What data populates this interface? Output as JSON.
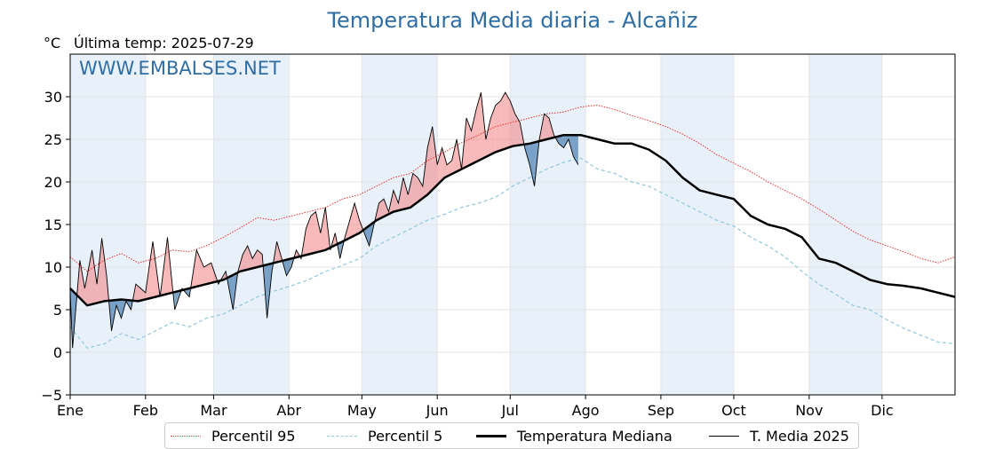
{
  "chart_data": {
    "type": "line",
    "title": "Temperatura Media diaria - Alcañiz",
    "ylabel": "°C",
    "subtitle": "Última temp: 2025-07-29",
    "watermark": "WWW.EMBALSES.NET",
    "ylim": [
      -5,
      35
    ],
    "yticks": [
      -5,
      0,
      5,
      10,
      15,
      20,
      25,
      30
    ],
    "ytick_labels": [
      "−5",
      "0",
      "5",
      "10",
      "15",
      "20",
      "25",
      "30"
    ],
    "xlim_day": [
      1,
      365
    ],
    "months": [
      "Ene",
      "Feb",
      "Mar",
      "Abr",
      "May",
      "Jun",
      "Jul",
      "Ago",
      "Sep",
      "Oct",
      "Nov",
      "Dic"
    ],
    "month_start_day": [
      1,
      32,
      60,
      91,
      121,
      152,
      182,
      213,
      244,
      274,
      305,
      335
    ],
    "grid": true,
    "legend_position": "bottom",
    "colors": {
      "title": "#2f6ea4",
      "watermark": "#2f6ea4",
      "p95": "#e8312b",
      "p5": "#8ec8dc",
      "median": "#000000",
      "t2025": "#000000",
      "above": "#f08080",
      "below": "#2e6aa3",
      "band": "#e8f1fa"
    },
    "series": [
      {
        "name": "Percentil 95",
        "style": "dotted",
        "x": [
          1,
          8,
          15,
          22,
          29,
          36,
          43,
          50,
          57,
          64,
          71,
          78,
          85,
          92,
          99,
          106,
          113,
          120,
          127,
          134,
          141,
          148,
          155,
          162,
          169,
          176,
          183,
          190,
          197,
          204,
          211,
          218,
          225,
          232,
          239,
          246,
          253,
          260,
          267,
          274,
          281,
          288,
          295,
          302,
          309,
          316,
          323,
          330,
          337,
          344,
          351,
          358,
          365
        ],
        "y": [
          11.2,
          9.5,
          10.8,
          11.6,
          10.5,
          11.0,
          12.0,
          11.8,
          12.5,
          13.5,
          14.6,
          15.8,
          15.5,
          16.0,
          16.5,
          17.0,
          18.0,
          18.5,
          19.5,
          20.5,
          21.0,
          22.5,
          23.5,
          24.6,
          25.5,
          26.5,
          27.0,
          27.5,
          28.0,
          28.2,
          28.8,
          29.0,
          28.5,
          27.8,
          27.2,
          26.5,
          25.6,
          24.5,
          23.2,
          22.2,
          21.2,
          20.0,
          19.0,
          18.0,
          16.8,
          15.5,
          14.2,
          13.2,
          12.5,
          11.8,
          11.0,
          10.5,
          11.2
        ]
      },
      {
        "name": "Percentil 5",
        "style": "dashed",
        "x": [
          1,
          8,
          15,
          22,
          29,
          36,
          43,
          50,
          57,
          64,
          71,
          78,
          85,
          92,
          99,
          106,
          113,
          120,
          127,
          134,
          141,
          148,
          155,
          162,
          169,
          176,
          183,
          190,
          197,
          204,
          211,
          218,
          225,
          232,
          239,
          246,
          253,
          260,
          267,
          274,
          281,
          288,
          295,
          302,
          309,
          316,
          323,
          330,
          337,
          344,
          351,
          358,
          365
        ],
        "y": [
          3.0,
          0.5,
          1.0,
          2.2,
          1.5,
          2.5,
          3.5,
          3.0,
          4.0,
          4.5,
          5.5,
          6.5,
          7.2,
          7.8,
          8.5,
          9.5,
          10.2,
          11.0,
          12.5,
          13.5,
          14.5,
          15.5,
          16.2,
          17.0,
          17.5,
          18.2,
          19.5,
          20.5,
          21.5,
          22.3,
          22.8,
          21.5,
          21.0,
          20.0,
          19.5,
          18.5,
          17.5,
          16.5,
          15.5,
          14.8,
          13.5,
          12.5,
          11.2,
          9.5,
          8.0,
          6.8,
          5.5,
          5.0,
          3.8,
          2.8,
          2.0,
          1.2,
          1.0
        ]
      },
      {
        "name": "Temperatura Mediana",
        "style": "solid-bold",
        "x": [
          1,
          8,
          15,
          22,
          29,
          36,
          43,
          50,
          57,
          64,
          71,
          78,
          85,
          92,
          99,
          106,
          113,
          120,
          127,
          134,
          141,
          148,
          155,
          162,
          169,
          176,
          183,
          190,
          197,
          204,
          211,
          218,
          225,
          232,
          239,
          246,
          253,
          260,
          267,
          274,
          281,
          288,
          295,
          302,
          309,
          316,
          323,
          330,
          337,
          344,
          351,
          358,
          365
        ],
        "y": [
          7.5,
          5.5,
          6.0,
          6.2,
          6.0,
          6.5,
          7.0,
          7.5,
          8.0,
          8.5,
          9.5,
          10.0,
          10.5,
          11.0,
          11.5,
          12.0,
          13.0,
          14.0,
          15.5,
          16.5,
          17.0,
          18.5,
          20.5,
          21.5,
          22.5,
          23.5,
          24.2,
          24.5,
          25.0,
          25.5,
          25.5,
          25.0,
          24.5,
          24.5,
          23.8,
          22.5,
          20.5,
          19.0,
          18.5,
          18.0,
          16.0,
          15.0,
          14.5,
          13.5,
          11.0,
          10.5,
          9.5,
          8.5,
          8.0,
          7.8,
          7.5,
          7.0,
          6.5
        ]
      },
      {
        "name": "T. Media 2025",
        "style": "solid-thin",
        "x": [
          1,
          2,
          5,
          7,
          10,
          12,
          14,
          16,
          18,
          20,
          22,
          24,
          26,
          28,
          30,
          32,
          35,
          38,
          41,
          44,
          47,
          50,
          53,
          56,
          59,
          62,
          65,
          68,
          70,
          72,
          74,
          76,
          78,
          80,
          82,
          84,
          86,
          88,
          90,
          92,
          94,
          96,
          98,
          100,
          102,
          104,
          106,
          108,
          110,
          112,
          114,
          116,
          118,
          120,
          122,
          124,
          126,
          128,
          130,
          132,
          134,
          136,
          138,
          140,
          142,
          144,
          146,
          148,
          150,
          152,
          154,
          156,
          158,
          160,
          162,
          164,
          166,
          168,
          170,
          172,
          174,
          176,
          178,
          180,
          182,
          184,
          186,
          188,
          190,
          192,
          194,
          196,
          198,
          200,
          202,
          204,
          206,
          208,
          210
        ],
        "y": [
          7.0,
          0.5,
          10.8,
          7.5,
          12.0,
          8.0,
          13.4,
          9.0,
          2.5,
          5.5,
          4.0,
          6.0,
          5.0,
          8.0,
          7.5,
          7.0,
          13.0,
          6.5,
          13.5,
          5.0,
          7.5,
          6.5,
          12.0,
          10.0,
          10.5,
          8.0,
          9.5,
          5.0,
          9.5,
          11.5,
          12.5,
          11.0,
          12.0,
          11.5,
          4.0,
          9.5,
          13.0,
          11.0,
          9.0,
          10.0,
          12.0,
          11.0,
          14.5,
          16.0,
          16.5,
          14.0,
          17.0,
          12.0,
          14.0,
          11.0,
          13.5,
          15.5,
          17.5,
          15.5,
          14.0,
          12.5,
          15.0,
          17.5,
          18.0,
          16.5,
          19.0,
          17.5,
          20.5,
          18.5,
          21.0,
          20.5,
          19.5,
          24.0,
          26.5,
          22.0,
          24.0,
          22.0,
          22.5,
          25.0,
          21.5,
          27.5,
          26.0,
          28.5,
          30.5,
          25.0,
          27.5,
          29.0,
          29.5,
          30.5,
          29.5,
          28.0,
          27.0,
          24.0,
          22.0,
          19.5,
          25.0,
          28.0,
          27.5,
          25.5,
          24.5,
          24.0,
          25.0,
          23.0,
          22.0
        ]
      }
    ]
  }
}
